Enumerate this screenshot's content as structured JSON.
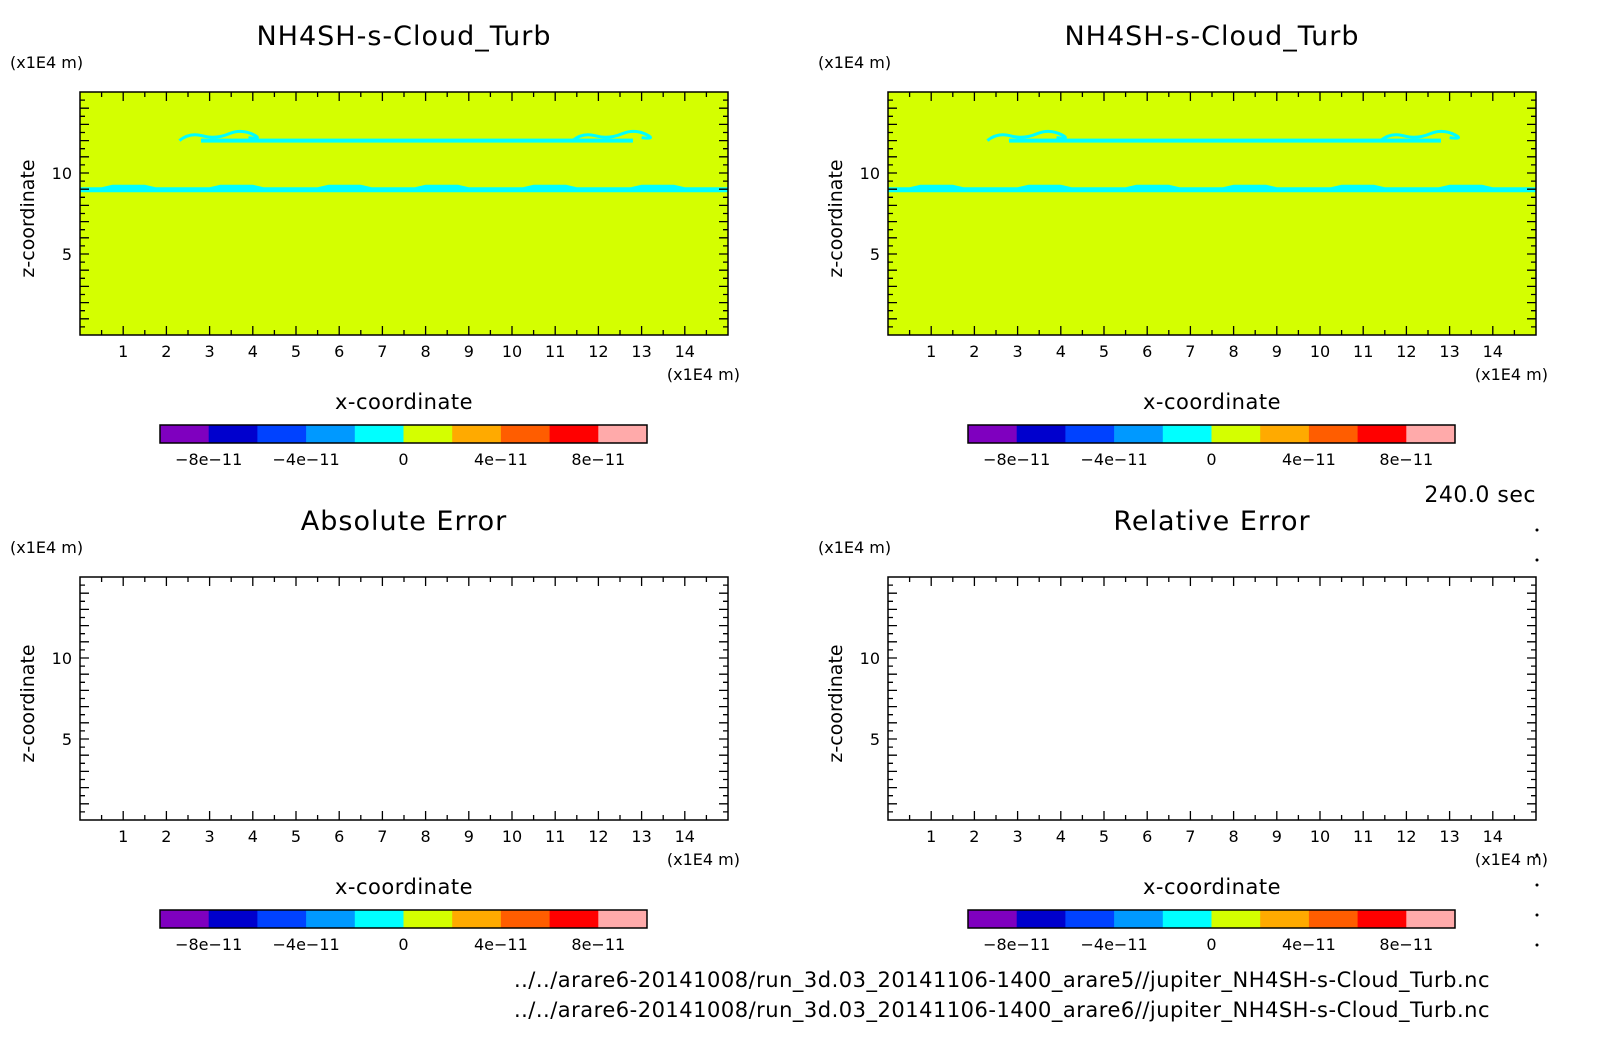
{
  "colors": {
    "fill_zero": "#d4ff00",
    "band": "#00ffff",
    "frame": "#000000",
    "colorbar": [
      "#7f00bf",
      "#0000cd",
      "#0042ff",
      "#0099ff",
      "#00ffff",
      "#d4ff00",
      "#ffaa00",
      "#ff5d00",
      "#ff0000",
      "#ffaaaa"
    ]
  },
  "time_label": "240.0 sec",
  "footer": {
    "file1": "../../arare6-20141008/run_3d.03_20141106-1400_arare5//jupiter_NH4SH-s-Cloud_Turb.nc",
    "file2": "../../arare6-20141008/run_3d.03_20141106-1400_arare6//jupiter_NH4SH-s-Cloud_Turb.nc"
  },
  "chart_data": [
    {
      "type": "heatmap",
      "title": "NH4SH-s-Cloud_Turb",
      "xlabel": "x-coordinate",
      "ylabel": "z-coordinate",
      "x_unit": "(x1E4 m)",
      "y_unit": "(x1E4 m)",
      "xlim": [
        0,
        15
      ],
      "ylim": [
        0,
        15
      ],
      "xticks": [
        1,
        2,
        3,
        4,
        5,
        6,
        7,
        8,
        9,
        10,
        11,
        12,
        13,
        14
      ],
      "yticks": [
        5,
        10
      ],
      "field": "uniform near 0, thin slightly negative bands near z=9 and z=12",
      "colorbar": {
        "levels": [
          -1e-10,
          -8e-11,
          -6e-11,
          -4e-11,
          -2e-11,
          0,
          2e-11,
          4e-11,
          6e-11,
          8e-11,
          1e-10
        ],
        "tick_labels": [
          "-8e-11",
          "-4e-11",
          "0",
          "4e-11",
          "8e-11"
        ],
        "tick_values": [
          -8e-11,
          -4e-11,
          0,
          4e-11,
          8e-11
        ]
      }
    },
    {
      "type": "heatmap",
      "title": "NH4SH-s-Cloud_Turb",
      "xlabel": "x-coordinate",
      "ylabel": "z-coordinate",
      "x_unit": "(x1E4 m)",
      "y_unit": "(x1E4 m)",
      "xlim": [
        0,
        15
      ],
      "ylim": [
        0,
        15
      ],
      "xticks": [
        1,
        2,
        3,
        4,
        5,
        6,
        7,
        8,
        9,
        10,
        11,
        12,
        13,
        14
      ],
      "yticks": [
        5,
        10
      ],
      "field": "uniform near 0, thin slightly negative bands near z=9 and z=12",
      "colorbar": {
        "levels": [
          -1e-10,
          -8e-11,
          -6e-11,
          -4e-11,
          -2e-11,
          0,
          2e-11,
          4e-11,
          6e-11,
          8e-11,
          1e-10
        ],
        "tick_labels": [
          "-8e-11",
          "-4e-11",
          "0",
          "4e-11",
          "8e-11"
        ],
        "tick_values": [
          -8e-11,
          -4e-11,
          0,
          4e-11,
          8e-11
        ]
      }
    },
    {
      "type": "heatmap",
      "title": "Absolute Error",
      "xlabel": "x-coordinate",
      "ylabel": "z-coordinate",
      "x_unit": "(x1E4 m)",
      "y_unit": "(x1E4 m)",
      "xlim": [
        0,
        15
      ],
      "ylim": [
        0,
        15
      ],
      "xticks": [
        1,
        2,
        3,
        4,
        5,
        6,
        7,
        8,
        9,
        10,
        11,
        12,
        13,
        14
      ],
      "yticks": [
        5,
        10
      ],
      "field": "empty",
      "colorbar": {
        "levels": [
          -1e-10,
          -8e-11,
          -6e-11,
          -4e-11,
          -2e-11,
          0,
          2e-11,
          4e-11,
          6e-11,
          8e-11,
          1e-10
        ],
        "tick_labels": [
          "-8e-11",
          "-4e-11",
          "0",
          "4e-11",
          "8e-11"
        ],
        "tick_values": [
          -8e-11,
          -4e-11,
          0,
          4e-11,
          8e-11
        ]
      }
    },
    {
      "type": "heatmap",
      "title": "Relative Error",
      "xlabel": "x-coordinate",
      "ylabel": "z-coordinate",
      "x_unit": "(x1E4 m)",
      "y_unit": "(x1E4 m)",
      "xlim": [
        0,
        15
      ],
      "ylim": [
        0,
        15
      ],
      "xticks": [
        1,
        2,
        3,
        4,
        5,
        6,
        7,
        8,
        9,
        10,
        11,
        12,
        13,
        14
      ],
      "yticks": [
        5,
        10
      ],
      "field": "empty",
      "colorbar": {
        "levels": [
          -1e-10,
          -8e-11,
          -6e-11,
          -4e-11,
          -2e-11,
          0,
          2e-11,
          4e-11,
          6e-11,
          8e-11,
          1e-10
        ],
        "tick_labels": [
          "-8e-11",
          "-4e-11",
          "0",
          "4e-11",
          "8e-11"
        ],
        "tick_values": [
          -8e-11,
          -4e-11,
          0,
          4e-11,
          8e-11
        ]
      }
    }
  ]
}
